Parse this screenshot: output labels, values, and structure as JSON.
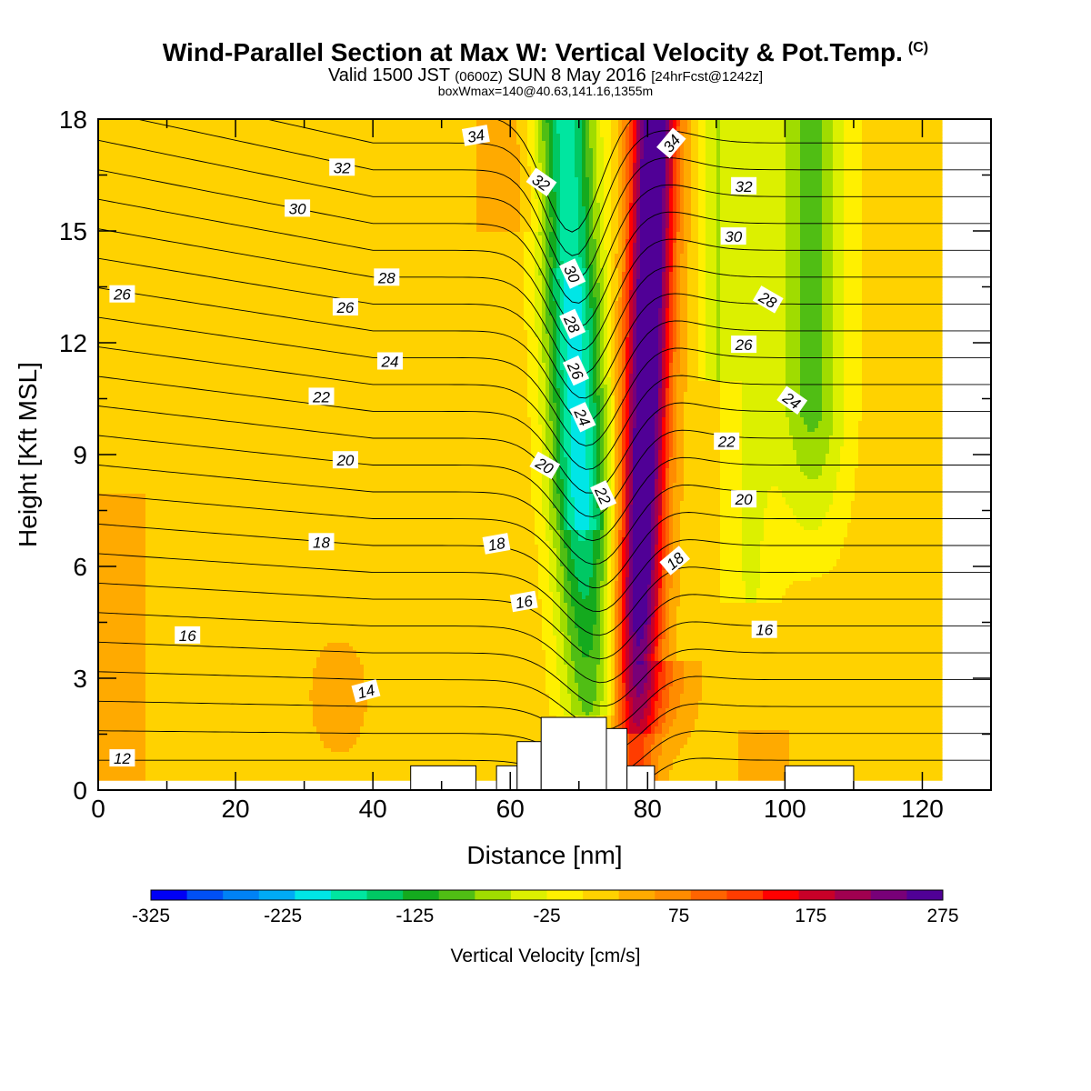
{
  "title": {
    "main": "Wind-Parallel Section at Max W: Vertical Velocity & Pot.Temp.",
    "copyright": "(C)",
    "valid_prefix": "Valid 1500 JST",
    "valid_utc": "(0600Z)",
    "valid_date": "SUN 8 May 2016",
    "forecast": "[24hrFcst@1242z]",
    "box_info": "boxWmax=140@40.63,141.16,1355m"
  },
  "chart_data": {
    "type": "heatmap",
    "xlabel": "Distance [nm]",
    "ylabel": "Height [Kft MSL]",
    "xlim": [
      0,
      130
    ],
    "ylim": [
      0,
      18
    ],
    "x_ticks": [
      0,
      20,
      40,
      60,
      80,
      100,
      120
    ],
    "y_ticks": [
      0,
      3,
      6,
      9,
      12,
      15,
      18
    ],
    "grid": false,
    "colorbar": {
      "label": "Vertical Velocity [cm/s]",
      "min": -325,
      "max": 275,
      "step": 25,
      "tick_labels": [
        "-325",
        "-225",
        "-125",
        "-25",
        "75",
        "175",
        "275"
      ],
      "colors": [
        "#0000f5",
        "#0050f5",
        "#0082f5",
        "#00aaf5",
        "#00e6e6",
        "#00e6a0",
        "#00c864",
        "#14aa1e",
        "#50be14",
        "#a0dc00",
        "#dcf000",
        "#fff000",
        "#ffd200",
        "#ffaa00",
        "#ff8c00",
        "#ff6400",
        "#ff3c00",
        "#ff0000",
        "#c80028",
        "#a00050",
        "#780078",
        "#500096"
      ]
    },
    "field_description": "Vertical velocity shading; background -25..0 cm/s (yellow); updraft core up to ~275 cm/s near x=80 nm; downdraft core to ~-225 cm/s near x=70 nm",
    "updraft_core": {
      "x_bottom": 78,
      "x_top": 81,
      "max": 275
    },
    "downdraft_core": {
      "x_bottom": 72,
      "x_top": 68,
      "min": -225
    },
    "theta_contours": {
      "units": "°C",
      "interval": 1,
      "labels": [
        {
          "v": "12",
          "x": 3.5,
          "y": 0.85,
          "rot": 0
        },
        {
          "v": "14",
          "x": 39,
          "y": 2.65,
          "rot": -15
        },
        {
          "v": "16",
          "x": 13,
          "y": 4.15,
          "rot": 0
        },
        {
          "v": "16",
          "x": 62,
          "y": 5.05,
          "rot": -10
        },
        {
          "v": "16",
          "x": 97,
          "y": 4.3,
          "rot": 0
        },
        {
          "v": "18",
          "x": 32.5,
          "y": 6.65,
          "rot": 0
        },
        {
          "v": "18",
          "x": 58,
          "y": 6.6,
          "rot": -10
        },
        {
          "v": "18",
          "x": 84,
          "y": 6.15,
          "rot": -40
        },
        {
          "v": "20",
          "x": 36,
          "y": 8.85,
          "rot": 0
        },
        {
          "v": "20",
          "x": 65,
          "y": 8.7,
          "rot": 30
        },
        {
          "v": "20",
          "x": 94,
          "y": 7.8,
          "rot": 0
        },
        {
          "v": "22",
          "x": 32.5,
          "y": 10.55,
          "rot": 0
        },
        {
          "v": "22",
          "x": 73.5,
          "y": 7.9,
          "rot": 65
        },
        {
          "v": "22",
          "x": 91.5,
          "y": 9.35,
          "rot": 0
        },
        {
          "v": "24",
          "x": 42.5,
          "y": 11.5,
          "rot": 0
        },
        {
          "v": "24",
          "x": 70.5,
          "y": 10.0,
          "rot": 65
        },
        {
          "v": "24",
          "x": 101,
          "y": 10.45,
          "rot": 35
        },
        {
          "v": "26",
          "x": 3.5,
          "y": 13.3,
          "rot": 0
        },
        {
          "v": "26",
          "x": 36,
          "y": 12.95,
          "rot": 0
        },
        {
          "v": "26",
          "x": 69.5,
          "y": 11.25,
          "rot": 65
        },
        {
          "v": "26",
          "x": 94,
          "y": 11.95,
          "rot": 0
        },
        {
          "v": "28",
          "x": 42,
          "y": 13.75,
          "rot": 0
        },
        {
          "v": "28",
          "x": 69,
          "y": 12.5,
          "rot": 65
        },
        {
          "v": "28",
          "x": 97.5,
          "y": 13.15,
          "rot": 30
        },
        {
          "v": "30",
          "x": 29,
          "y": 15.6,
          "rot": 0
        },
        {
          "v": "30",
          "x": 69,
          "y": 13.85,
          "rot": 65
        },
        {
          "v": "30",
          "x": 92.5,
          "y": 14.85,
          "rot": 0
        },
        {
          "v": "32",
          "x": 35.5,
          "y": 16.7,
          "rot": 0
        },
        {
          "v": "32",
          "x": 64.5,
          "y": 16.3,
          "rot": 35
        },
        {
          "v": "32",
          "x": 94,
          "y": 16.2,
          "rot": 0
        },
        {
          "v": "34",
          "x": 55,
          "y": 17.55,
          "rot": -10
        },
        {
          "v": "34",
          "x": 83.5,
          "y": 17.35,
          "rot": -50
        }
      ]
    },
    "terrain_blocks": [
      {
        "x0": 45.5,
        "x1": 55,
        "top": 0.65
      },
      {
        "x0": 58,
        "x1": 61,
        "top": 0.65
      },
      {
        "x0": 61,
        "x1": 64.5,
        "top": 1.3
      },
      {
        "x0": 64.5,
        "x1": 74,
        "top": 1.95
      },
      {
        "x0": 74,
        "x1": 77,
        "top": 1.65
      },
      {
        "x0": 77,
        "x1": 81,
        "top": 0.65
      },
      {
        "x0": 100,
        "x1": 110,
        "top": 0.65
      }
    ]
  }
}
